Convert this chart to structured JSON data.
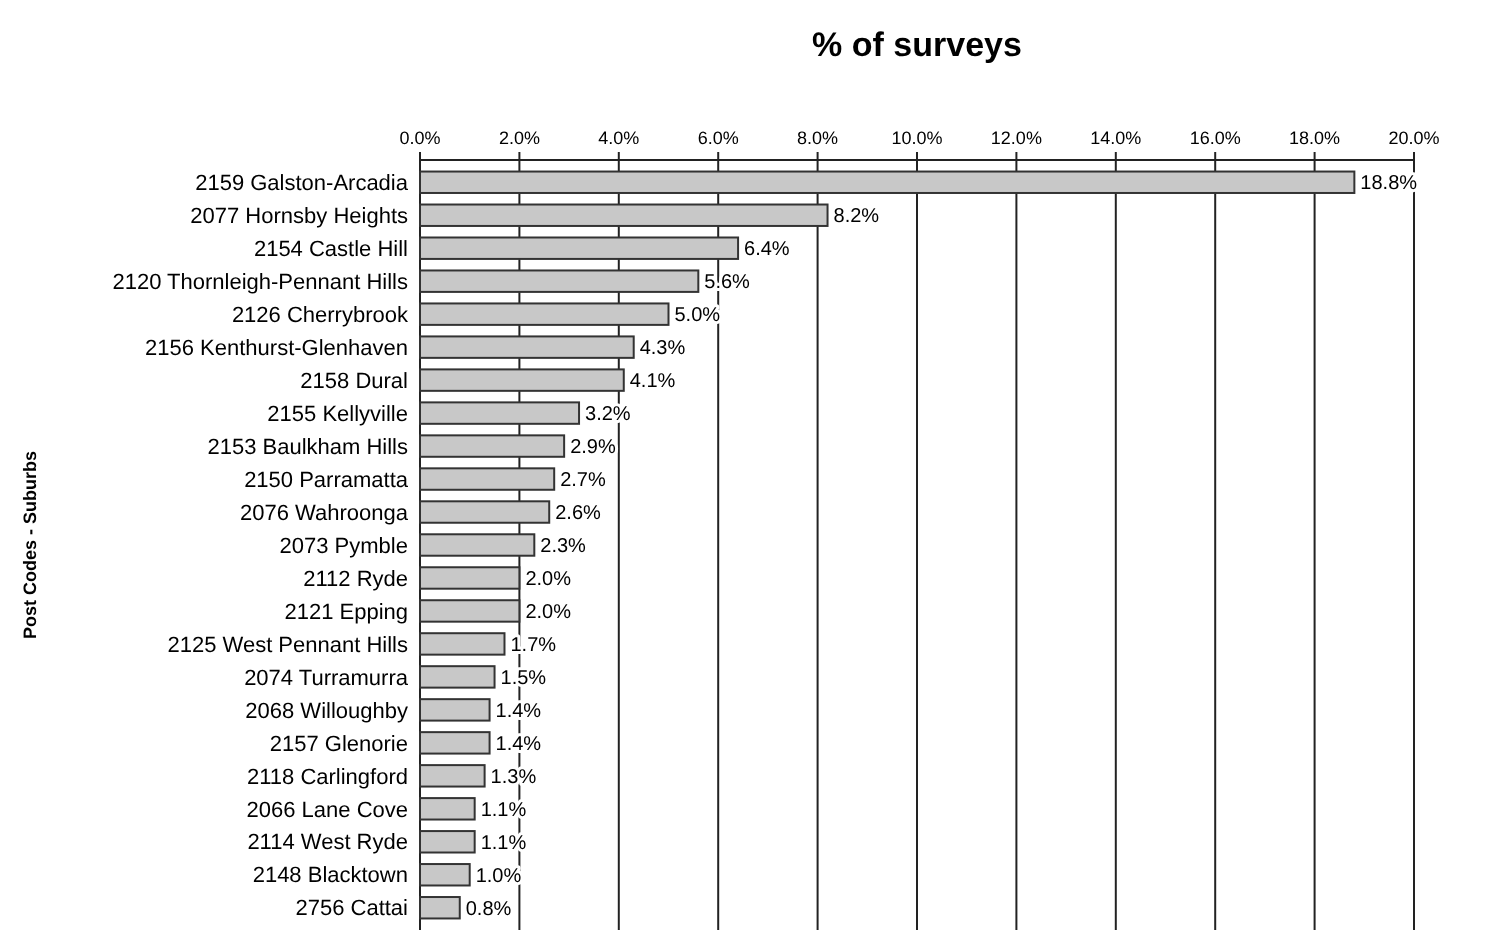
{
  "chart_data": {
    "type": "bar",
    "orientation": "horizontal",
    "xlabel": "% of surveys",
    "ylabel": "Post Codes - Suburbs",
    "categories": [
      "2159 Galston-Arcadia",
      "2077 Hornsby Heights",
      "2154 Castle Hill",
      "2120 Thornleigh-Pennant Hills",
      "2126 Cherrybrook",
      "2156 Kenthurst-Glenhaven",
      "2158 Dural",
      "2155 Kellyville",
      "2153 Baulkham Hills",
      "2150 Parramatta",
      "2076 Wahroonga",
      "2073 Pymble",
      "2112 Ryde",
      "2121 Epping",
      "2125 West Pennant Hills",
      "2074 Turramurra",
      "2068 Willoughby",
      "2157 Glenorie",
      "2118 Carlingford",
      "2066 Lane Cove",
      "2114 West Ryde",
      "2148 Blacktown",
      "2756 Cattai"
    ],
    "values": [
      18.8,
      8.2,
      6.4,
      5.6,
      5.0,
      4.3,
      4.1,
      3.2,
      2.9,
      2.7,
      2.6,
      2.3,
      2.0,
      2.0,
      1.7,
      1.5,
      1.4,
      1.4,
      1.3,
      1.1,
      1.1,
      1.0,
      0.8
    ],
    "value_labels": [
      "18.8%",
      "8.2%",
      "6.4%",
      "5.6%",
      "5.0%",
      "4.3%",
      "4.1%",
      "3.2%",
      "2.9%",
      "2.7%",
      "2.6%",
      "2.3%",
      "2.0%",
      "2.0%",
      "1.7%",
      "1.5%",
      "1.4%",
      "1.4%",
      "1.3%",
      "1.1%",
      "1.1%",
      "1.0%",
      "0.8%"
    ],
    "color": "#c8c8c8",
    "xlim": [
      0,
      20
    ],
    "xticks": [
      {
        "value": 0,
        "label": "0.0%"
      },
      {
        "value": 2,
        "label": "2.0%"
      },
      {
        "value": 4,
        "label": "4.0%"
      },
      {
        "value": 6,
        "label": "6.0%"
      },
      {
        "value": 8,
        "label": "8.0%"
      },
      {
        "value": 10,
        "label": "10.0%"
      },
      {
        "value": 12,
        "label": "12.0%"
      },
      {
        "value": 14,
        "label": "14.0%"
      },
      {
        "value": 16,
        "label": "16.0%"
      },
      {
        "value": 18,
        "label": "18.0%"
      },
      {
        "value": 20,
        "label": "20.0%"
      }
    ],
    "grid": "x"
  }
}
